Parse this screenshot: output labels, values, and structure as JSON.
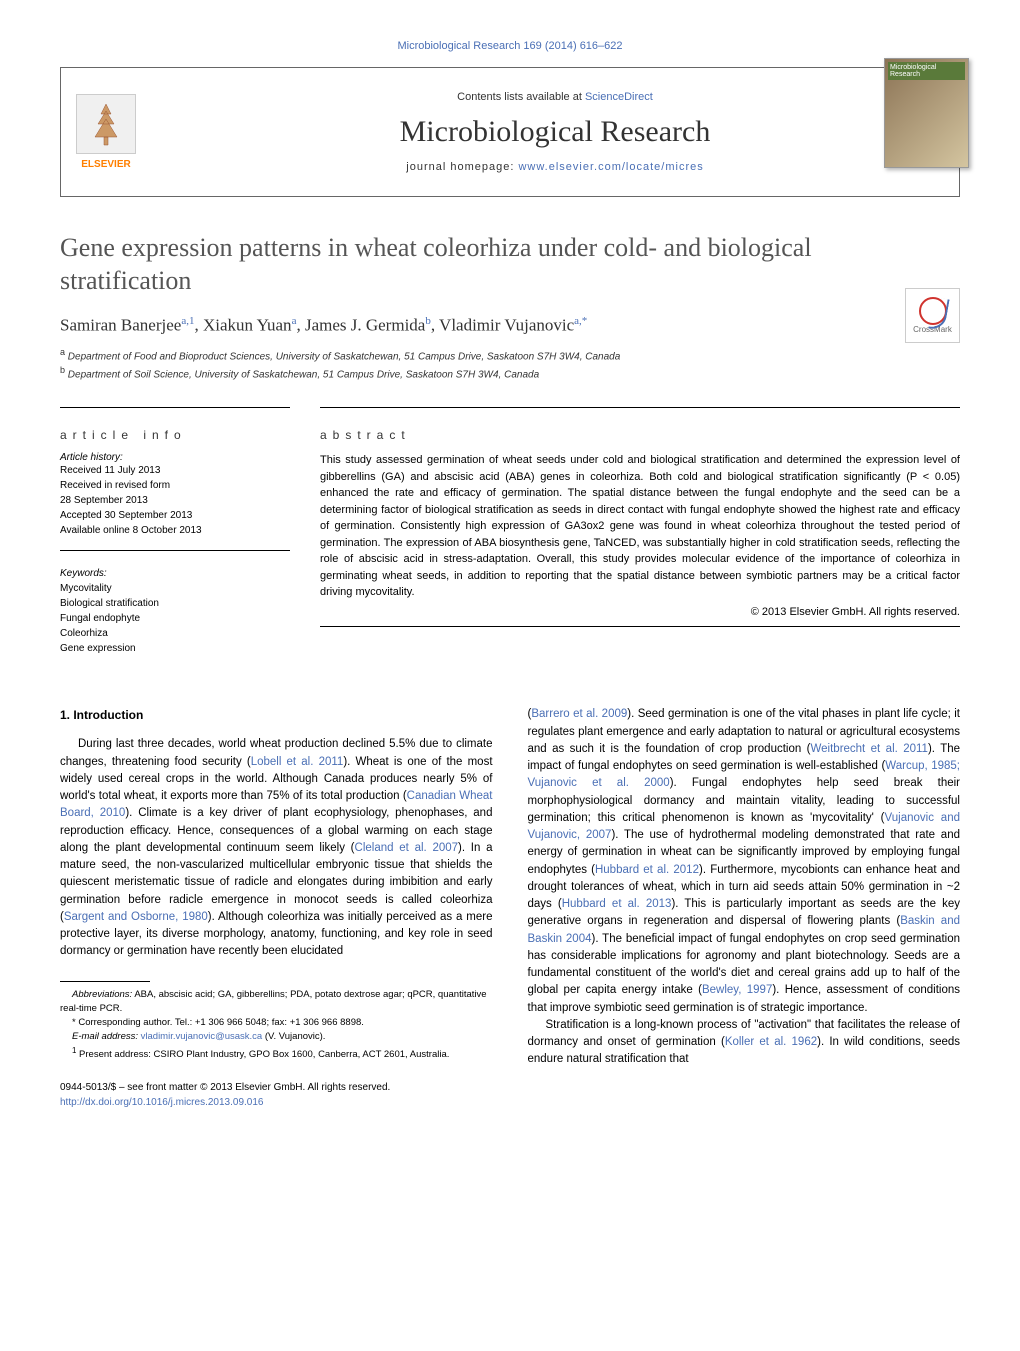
{
  "journal_ref": "Microbiological Research 169 (2014) 616–622",
  "header": {
    "publisher": "ELSEVIER",
    "contents_prefix": "Contents lists available at ",
    "contents_link": "ScienceDirect",
    "journal_name": "Microbiological Research",
    "homepage_prefix": "journal homepage: ",
    "homepage_link": "www.elsevier.com/locate/micres",
    "cover_label": "Microbiological Research"
  },
  "crossmark_label": "CrossMark",
  "title": "Gene expression patterns in wheat coleorhiza under cold- and biological stratification",
  "authors_html": "Samiran Banerjee<sup>a,1</sup>, Xiakun Yuan<sup>a</sup>, James J. Germida<sup>b</sup>, Vladimir Vujanovic<sup>a,*</sup>",
  "affiliations": {
    "a": "Department of Food and Bioproduct Sciences, University of Saskatchewan, 51 Campus Drive, Saskatoon S7H 3W4, Canada",
    "b": "Department of Soil Science, University of Saskatchewan, 51 Campus Drive, Saskatoon S7H 3W4, Canada"
  },
  "article_info": {
    "heading": "article info",
    "history_label": "Article history:",
    "history": [
      "Received 11 July 2013",
      "Received in revised form",
      "28 September 2013",
      "Accepted 30 September 2013",
      "Available online 8 October 2013"
    ],
    "keywords_label": "Keywords:",
    "keywords": [
      "Mycovitality",
      "Biological stratification",
      "Fungal endophyte",
      "Coleorhiza",
      "Gene expression"
    ]
  },
  "abstract": {
    "heading": "abstract",
    "text": "This study assessed germination of wheat seeds under cold and biological stratification and determined the expression level of gibberellins (GA) and abscisic acid (ABA) genes in coleorhiza. Both cold and biological stratification significantly (P < 0.05) enhanced the rate and efficacy of germination. The spatial distance between the fungal endophyte and the seed can be a determining factor of biological stratification as seeds in direct contact with fungal endophyte showed the highest rate and efficacy of germination. Consistently high expression of GA3ox2 gene was found in wheat coleorhiza throughout the tested period of germination. The expression of ABA biosynthesis gene, TaNCED, was substantially higher in cold stratification seeds, reflecting the role of abscisic acid in stress-adaptation. Overall, this study provides molecular evidence of the importance of coleorhiza in germinating wheat seeds, in addition to reporting that the spatial distance between symbiotic partners may be a critical factor driving mycovitality.",
    "copyright": "© 2013 Elsevier GmbH. All rights reserved."
  },
  "body": {
    "section_heading": "1.  Introduction",
    "para1_pre": "During last three decades, world wheat production declined 5.5% due to climate changes, threatening food security (",
    "ref1": "Lobell et al. 2011",
    "para1_b": "). Wheat is one of the most widely used cereal crops in the world. Although Canada produces nearly 5% of world's total wheat, it exports more than 75% of its total production (",
    "ref2": "Canadian Wheat Board, 2010",
    "para1_c": "). Climate is a key driver of plant ecophysiology, phenophases, and reproduction efficacy. Hence, consequences of a global warming on each stage along the plant developmental continuum seem likely (",
    "ref3": "Cleland et al. 2007",
    "para1_d": "). In a mature seed, the non-vascularized multicellular embryonic tissue that shields the quiescent meristematic tissue of radicle and elongates during imbibition and early germination before radicle emergence in monocot seeds is called coleorhiza (",
    "ref4": "Sargent and Osborne, 1980",
    "para1_e": "). Although coleorhiza was initially perceived as a mere protective layer, its diverse morphology, anatomy, functioning, and key role in seed dormancy or germination have recently been elucidated",
    "col2_a": "(",
    "ref5": "Barrero et al. 2009",
    "col2_b": "). Seed germination is one of the vital phases in plant life cycle; it regulates plant emergence and early adaptation to natural or agricultural ecosystems and as such it is the foundation of crop production (",
    "ref6": "Weitbrecht et al. 2011",
    "col2_c": "). The impact of fungal endophytes on seed germination is well-established (",
    "ref7": "Warcup, 1985; Vujanovic et al. 2000",
    "col2_d": "). Fungal endophytes help seed break their morphophysiological dormancy and maintain vitality, leading to successful germination; this critical phenomenon is known as 'mycovitality' (",
    "ref8": "Vujanovic and Vujanovic, 2007",
    "col2_e": "). The use of hydrothermal modeling demonstrated that rate and energy of germination in wheat can be significantly improved by employing fungal endophytes (",
    "ref9": "Hubbard et al. 2012",
    "col2_f": "). Furthermore, mycobionts can enhance heat and drought tolerances of wheat, which in turn aid seeds attain 50% germination in ~2 days (",
    "ref10": "Hubbard et al. 2013",
    "col2_g": "). This is particularly important as seeds are the key generative organs in regeneration and dispersal of flowering plants (",
    "ref11": "Baskin and Baskin 2004",
    "col2_h": "). The beneficial impact of fungal endophytes on crop seed germination has considerable implications for agronomy and plant biotechnology. Seeds are a fundamental constituent of the world's diet and cereal grains add up to half of the global per capita energy intake (",
    "ref12": "Bewley, 1997",
    "col2_i": "). Hence, assessment of conditions that improve symbiotic seed germination is of strategic importance.",
    "para2_a": "Stratification is a long-known process of \"activation\" that facilitates the release of dormancy and onset of germination (",
    "ref13": "Koller et al. 1962",
    "para2_b": "). In wild conditions, seeds endure natural stratification that"
  },
  "footnotes": {
    "abbrev_label": "Abbreviations:",
    "abbrev_text": " ABA, abscisic acid; GA, gibberellins; PDA, potato dextrose agar; qPCR, quantitative real-time PCR.",
    "corr_label": "* Corresponding author. ",
    "corr_text": "Tel.: +1 306 966 5048; fax: +1 306 966 8898.",
    "email_label": "E-mail address: ",
    "email": "vladimir.vujanovic@usask.ca",
    "email_suffix": " (V. Vujanovic).",
    "present_label": "1",
    "present_text": " Present address: CSIRO Plant Industry, GPO Box 1600, Canberra, ACT 2601, Australia."
  },
  "footer": {
    "front_matter": "0944-5013/$ – see front matter © 2013 Elsevier GmbH. All rights reserved.",
    "doi": "http://dx.doi.org/10.1016/j.micres.2013.09.016"
  },
  "colors": {
    "link": "#4a6fb5",
    "publisher_orange": "#ff7f00",
    "text": "#000000",
    "title_gray": "#555555"
  }
}
